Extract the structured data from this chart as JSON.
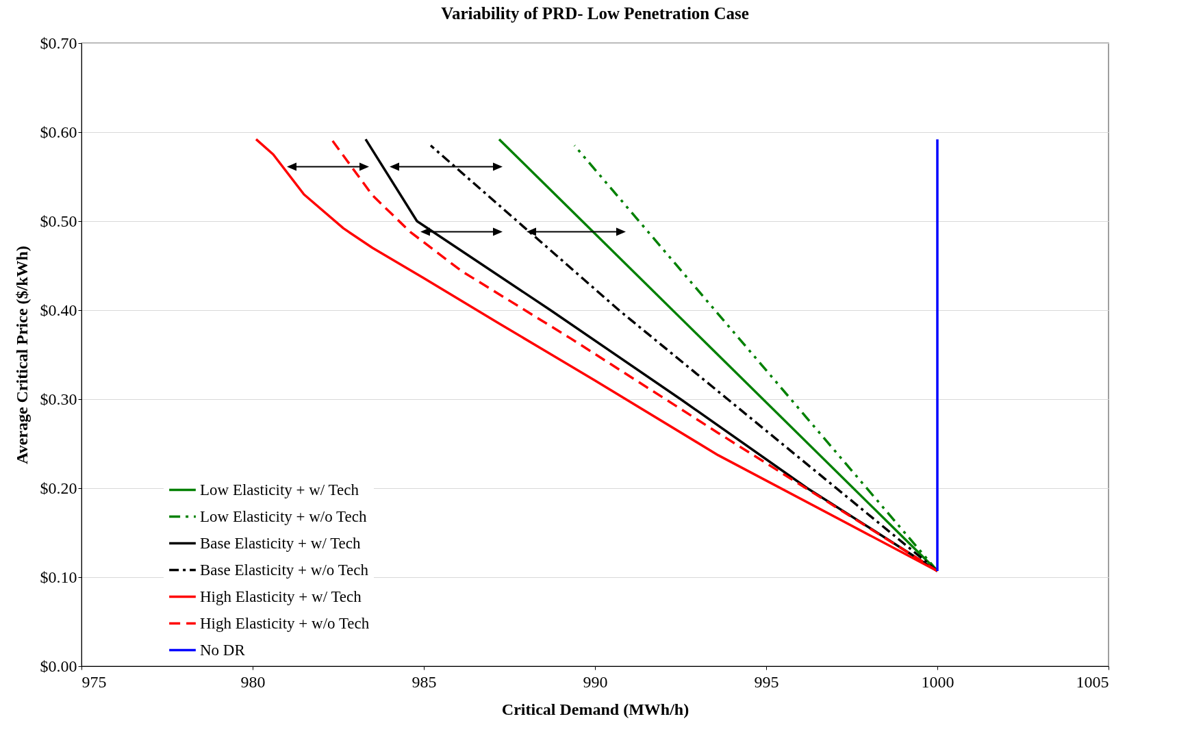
{
  "chart_data": {
    "type": "line",
    "title": "Variability of PRD- Low Penetration Case",
    "xlabel": "Critical Demand (MWh/h)",
    "ylabel": "Average Critical Price ($/kWh)",
    "xlim": [
      975,
      1005
    ],
    "xticks": [
      975,
      980,
      985,
      990,
      995,
      1000,
      1005
    ],
    "ylim": [
      0,
      0.7
    ],
    "yticks": [
      {
        "value": 0,
        "label": "$0.00"
      },
      {
        "value": 0.1,
        "label": "$0.10"
      },
      {
        "value": 0.2,
        "label": "$0.20"
      },
      {
        "value": 0.3,
        "label": "$0.30"
      },
      {
        "value": 0.4,
        "label": "$0.40"
      },
      {
        "value": 0.5,
        "label": "$0.50"
      },
      {
        "value": 0.6,
        "label": "$0.60"
      },
      {
        "value": 0.7,
        "label": "$0.70"
      }
    ],
    "grid": "y",
    "legend": "bottom left",
    "marker": "none",
    "series": [
      {
        "name": "Low Elasticity + w/ Tech",
        "color": "#008000",
        "line_style": "solid",
        "x": [
          987.2,
          1000
        ],
        "values": [
          0.592,
          0.107
        ]
      },
      {
        "name": "Low Elasticity + w/o Tech",
        "color": "#008000",
        "line_style": "dashdotdot",
        "x": [
          989.4,
          1000
        ],
        "values": [
          0.585,
          0.107
        ]
      },
      {
        "name": "Base Elasticity + w/ Tech",
        "color": "#000000",
        "line_style": "solid",
        "x": [
          983.3,
          984.8,
          986.75,
          988.7,
          992.5,
          996.2,
          1000
        ],
        "values": [
          0.592,
          0.5,
          0.45,
          0.4,
          0.3,
          0.2,
          0.107
        ]
      },
      {
        "name": "Base Elasticity + w/o Tech",
        "color": "#000000",
        "line_style": "dashdot",
        "x": [
          985.2,
          990.7,
          1000
        ],
        "values": [
          0.585,
          0.4,
          0.107
        ]
      },
      {
        "name": "High Elasticity + w/ Tech",
        "color": "#ff0000",
        "line_style": "solid",
        "x": [
          980.1,
          980.6,
          981.5,
          982.65,
          983.5,
          985,
          987.2,
          990,
          993.6,
          1000
        ],
        "values": [
          0.592,
          0.575,
          0.53,
          0.492,
          0.47,
          0.436,
          0.385,
          0.321,
          0.237,
          0.107
        ]
      },
      {
        "name": "High Elasticity + w/o Tech",
        "color": "#ff0000",
        "line_style": "dashed",
        "x": [
          982.3,
          983.5,
          984.6,
          986.1,
          989.3,
          993.6,
          1000
        ],
        "values": [
          0.592,
          0.529,
          0.488,
          0.444,
          0.368,
          0.262,
          0.107
        ]
      },
      {
        "name": "No DR",
        "color": "#0000ff",
        "line_style": "solid",
        "x": [
          1000,
          1000
        ],
        "values": [
          0.107,
          0.592
        ]
      }
    ]
  }
}
